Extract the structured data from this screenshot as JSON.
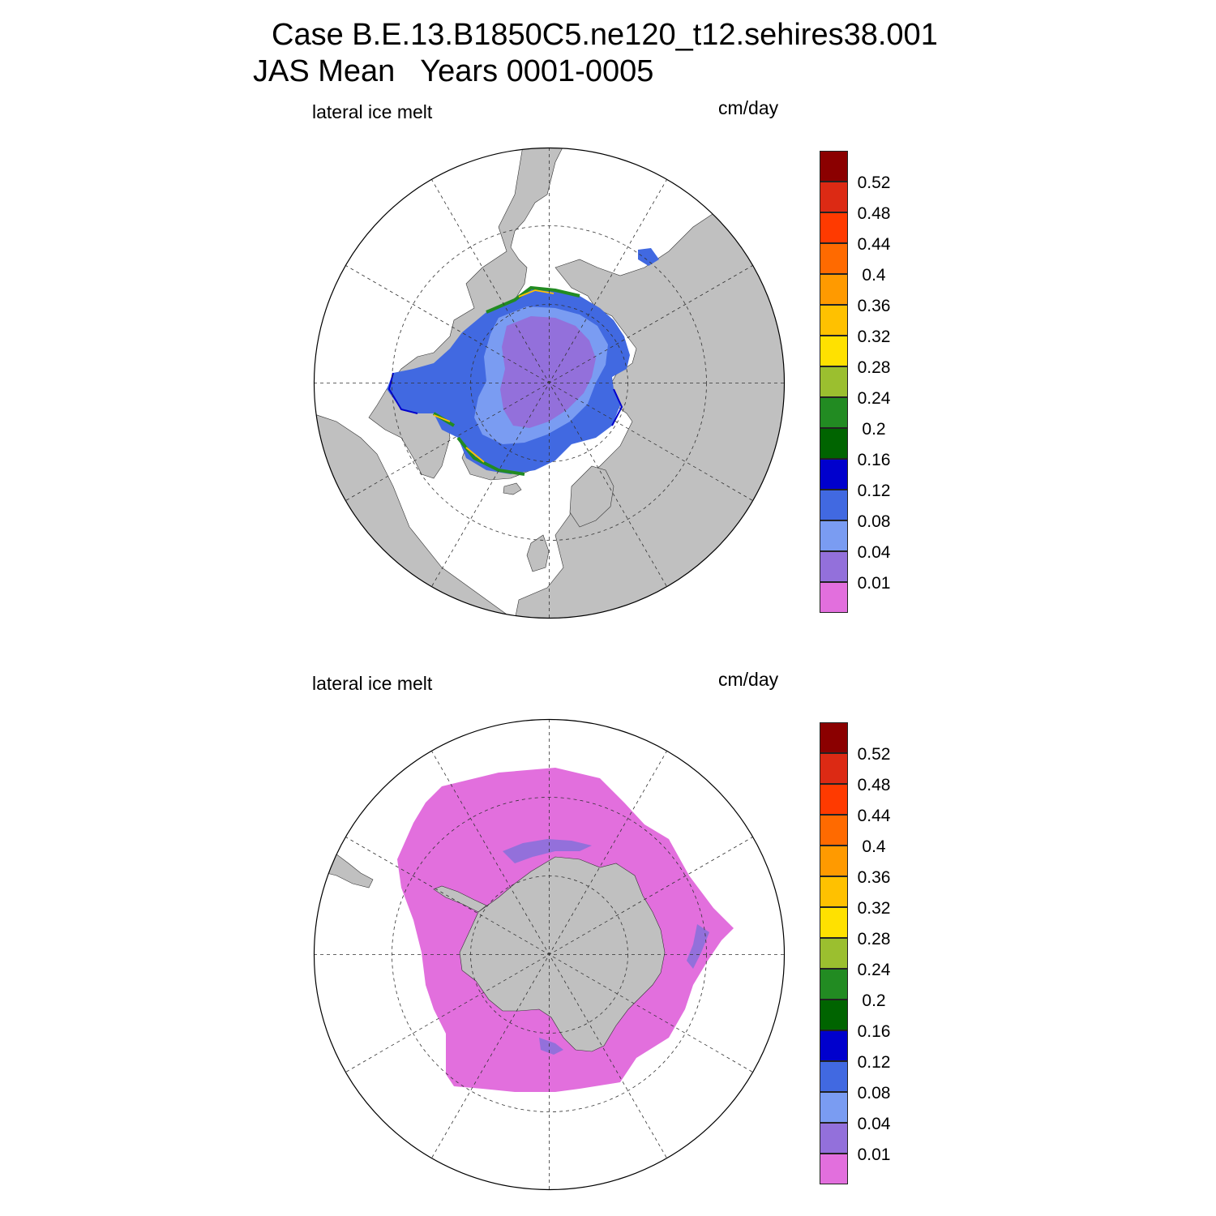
{
  "title": {
    "line1": "Case B.E.13.B1850C5.ne120_t12.sehires38.001",
    "line2": "JAS Mean   Years 0001-0005"
  },
  "panels": [
    {
      "id": "north",
      "variable_label": "lateral ice melt",
      "units_label": "cm/day",
      "hemisphere": "north",
      "dominant_value_class": "0.04-0.08 / 0.08-0.12 near coasts, up to 0.36 along ice edge"
    },
    {
      "id": "south",
      "variable_label": "lateral ice melt",
      "units_label": "cm/day",
      "hemisphere": "south",
      "dominant_value_class": "below 0.01 over nearly the whole ice pack"
    }
  ],
  "colorbar": {
    "levels": [
      "0.52",
      "0.48",
      "0.44",
      "0.4",
      "0.36",
      "0.32",
      "0.28",
      "0.24",
      "0.2",
      "0.16",
      "0.12",
      "0.08",
      "0.04",
      "0.01"
    ],
    "colors_top_to_bottom": [
      "#8b0000",
      "#dc2a14",
      "#ff3a00",
      "#ff6a00",
      "#ff9a00",
      "#ffc100",
      "#ffe100",
      "#9bbf2f",
      "#228b22",
      "#006400",
      "#0000cd",
      "#4169e1",
      "#7a9cf2",
      "#9370db",
      "#e26fdd"
    ]
  },
  "colors": {
    "land": "#c0c0c0",
    "ocean": "#ffffff",
    "grid": "#000000"
  }
}
